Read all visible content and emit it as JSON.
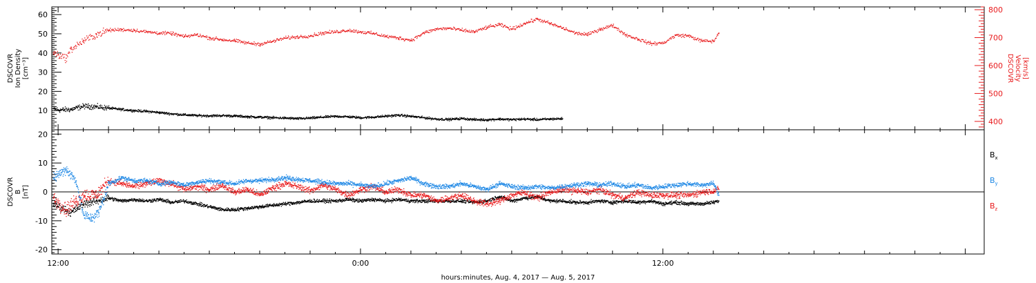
{
  "chart_data": [
    {
      "type": "scatter",
      "panel": "plasma",
      "left_axis": {
        "label_lines": [
          "DSCOVR",
          "Ion Density",
          "[cm⁻³]"
        ],
        "range": [
          0,
          64
        ],
        "ticks": [
          10,
          20,
          30,
          40,
          50,
          60
        ],
        "color": "#000000"
      },
      "right_axis": {
        "label_lines": [
          "DSCOVR",
          "Velocity",
          "[km/s]"
        ],
        "range": [
          370,
          810
        ],
        "ticks": [
          400,
          500,
          600,
          700,
          800
        ],
        "color": "#e8191b"
      },
      "series": [
        {
          "axis": "left",
          "color": "#000000",
          "points": [
            [
              -0.2,
              11.2
            ],
            [
              0,
              10.5
            ],
            [
              0.5,
              10.8
            ],
            [
              1,
              12.5
            ],
            [
              1.5,
              12.2
            ],
            [
              2,
              11.5
            ],
            [
              2.5,
              10.8
            ],
            [
              3,
              10.2
            ],
            [
              3.5,
              9.8
            ],
            [
              4,
              9.2
            ],
            [
              4.5,
              8.5
            ],
            [
              5,
              8
            ],
            [
              5.5,
              7.6
            ],
            [
              6,
              7.5
            ],
            [
              6.5,
              7.6
            ],
            [
              7,
              7.4
            ],
            [
              7.5,
              7
            ],
            [
              8,
              6.8
            ],
            [
              8.5,
              6.5
            ],
            [
              9,
              6.3
            ],
            [
              9.5,
              6
            ],
            [
              10,
              6.3
            ],
            [
              10.5,
              6.8
            ],
            [
              11,
              7.2
            ],
            [
              11.5,
              7
            ],
            [
              12,
              6.5
            ],
            [
              12.5,
              6.8
            ],
            [
              13,
              7.3
            ],
            [
              13.5,
              7.8
            ],
            [
              14,
              7.2
            ],
            [
              14.5,
              6.5
            ],
            [
              15,
              5.8
            ],
            [
              15.5,
              5.6
            ],
            [
              16,
              6.1
            ],
            [
              16.5,
              5.5
            ],
            [
              17,
              5.4
            ],
            [
              17.5,
              5.8
            ],
            [
              18,
              5.5
            ],
            [
              18.5,
              5.8
            ],
            [
              19,
              5.5
            ],
            [
              19.5,
              5.8
            ],
            [
              20,
              6
            ]
          ]
        },
        {
          "axis": "right",
          "color": "#e8191b",
          "points": [
            [
              -0.2,
              648
            ],
            [
              0,
              640
            ],
            [
              0.3,
              628
            ],
            [
              0.5,
              660
            ],
            [
              1,
              690
            ],
            [
              1.5,
              712
            ],
            [
              2,
              728
            ],
            [
              2.5,
              730
            ],
            [
              3,
              728
            ],
            [
              3.5,
              722
            ],
            [
              4,
              718
            ],
            [
              4.5,
              716
            ],
            [
              5,
              705
            ],
            [
              5.5,
              712
            ],
            [
              6,
              700
            ],
            [
              6.5,
              694
            ],
            [
              7,
              690
            ],
            [
              7.5,
              682
            ],
            [
              8,
              678
            ],
            [
              8.5,
              688
            ],
            [
              9,
              700
            ],
            [
              9.5,
              704
            ],
            [
              10,
              708
            ],
            [
              10.5,
              718
            ],
            [
              11,
              722
            ],
            [
              11.5,
              728
            ],
            [
              12,
              722
            ],
            [
              12.5,
              716
            ],
            [
              13,
              706
            ],
            [
              13.5,
              700
            ],
            [
              14,
              692
            ],
            [
              14.5,
              718
            ],
            [
              15,
              732
            ],
            [
              15.5,
              735
            ],
            [
              16,
              728
            ],
            [
              16.5,
              722
            ],
            [
              17,
              738
            ],
            [
              17.5,
              748
            ],
            [
              18,
              732
            ],
            [
              18.5,
              752
            ],
            [
              19,
              768
            ],
            [
              19.5,
              752
            ],
            [
              20,
              736
            ],
            [
              20.5,
              718
            ],
            [
              21,
              712
            ],
            [
              21.5,
              732
            ],
            [
              22,
              745
            ],
            [
              22.5,
              712
            ],
            [
              23,
              696
            ],
            [
              23.5,
              680
            ],
            [
              24,
              682
            ],
            [
              24.5,
              710
            ],
            [
              25,
              708
            ],
            [
              25.5,
              690
            ],
            [
              26,
              688
            ],
            [
              26.2,
              718
            ]
          ]
        }
      ]
    },
    {
      "type": "scatter",
      "panel": "magnetic field",
      "left_axis": {
        "label_lines": [
          "DSCOVR",
          "B",
          "[nT]"
        ],
        "range": [
          -21.5,
          21.5
        ],
        "ticks": [
          -20,
          -10,
          0,
          10,
          20
        ]
      },
      "zero_line": 0,
      "legend": {
        "placement": "right",
        "entries": [
          {
            "label": "B",
            "sub": "x",
            "color": "#000000"
          },
          {
            "label": "B",
            "sub": "y",
            "color": "#1e88e5"
          },
          {
            "label": "B",
            "sub": "z",
            "color": "#e8191b"
          }
        ]
      },
      "series": [
        {
          "name": "Bx",
          "color": "#000000",
          "points": [
            [
              -0.2,
              -4
            ],
            [
              0.5,
              -7
            ],
            [
              1,
              -4
            ],
            [
              1.5,
              -3
            ],
            [
              2,
              -2
            ],
            [
              2.5,
              -3
            ],
            [
              3,
              -2.5
            ],
            [
              3.5,
              -3
            ],
            [
              4,
              -2.5
            ],
            [
              4.5,
              -3.5
            ],
            [
              5,
              -3
            ],
            [
              5.5,
              -4
            ],
            [
              6,
              -5
            ],
            [
              6.5,
              -6
            ],
            [
              7,
              -6
            ],
            [
              7.5,
              -5.5
            ],
            [
              8,
              -5
            ],
            [
              8.5,
              -4.5
            ],
            [
              9,
              -4
            ],
            [
              9.5,
              -3.5
            ],
            [
              10,
              -3
            ],
            [
              10.5,
              -3
            ],
            [
              11,
              -3
            ],
            [
              11.5,
              -2.5
            ],
            [
              12,
              -3
            ],
            [
              12.5,
              -2.5
            ],
            [
              13,
              -3
            ],
            [
              13.5,
              -2.5
            ],
            [
              14,
              -3
            ],
            [
              14.5,
              -3
            ],
            [
              15,
              -3
            ],
            [
              15.5,
              -3
            ],
            [
              16,
              -3
            ],
            [
              16.5,
              -3.5
            ],
            [
              17,
              -3
            ],
            [
              17.5,
              -1.5
            ],
            [
              18,
              -3
            ],
            [
              18.5,
              -2
            ],
            [
              19,
              -1.5
            ],
            [
              19.5,
              -3
            ],
            [
              20,
              -3
            ],
            [
              20.5,
              -3.5
            ],
            [
              21,
              -3.5
            ],
            [
              21.5,
              -3
            ],
            [
              22,
              -3.5
            ],
            [
              22.5,
              -3
            ],
            [
              23,
              -3.5
            ],
            [
              23.5,
              -3
            ],
            [
              24,
              -4
            ],
            [
              24.5,
              -3.5
            ],
            [
              25,
              -4
            ],
            [
              25.5,
              -4
            ],
            [
              26,
              -3.5
            ],
            [
              26.2,
              -3
            ]
          ]
        },
        {
          "name": "By",
          "color": "#1e88e5",
          "points": [
            [
              -0.2,
              5
            ],
            [
              0.3,
              8
            ],
            [
              0.7,
              4
            ],
            [
              1,
              -8
            ],
            [
              1.3,
              -9
            ],
            [
              1.6,
              -7
            ],
            [
              2,
              3
            ],
            [
              2.5,
              5
            ],
            [
              3,
              4
            ],
            [
              3.5,
              4
            ],
            [
              4,
              3
            ],
            [
              4.5,
              3.5
            ],
            [
              5,
              2.5
            ],
            [
              5.5,
              3.5
            ],
            [
              6,
              4
            ],
            [
              6.5,
              3.5
            ],
            [
              7,
              3
            ],
            [
              7.5,
              4
            ],
            [
              8,
              4
            ],
            [
              8.5,
              4.5
            ],
            [
              9,
              5
            ],
            [
              9.5,
              4.5
            ],
            [
              10,
              4
            ],
            [
              10.5,
              3.5
            ],
            [
              11,
              3
            ],
            [
              11.5,
              3
            ],
            [
              12,
              2.5
            ],
            [
              12.5,
              2
            ],
            [
              13,
              3
            ],
            [
              13.5,
              4
            ],
            [
              14,
              5
            ],
            [
              14.5,
              3
            ],
            [
              15,
              2
            ],
            [
              15.5,
              2
            ],
            [
              16,
              3
            ],
            [
              16.5,
              2
            ],
            [
              17,
              1
            ],
            [
              17.5,
              3
            ],
            [
              18,
              2
            ],
            [
              18.5,
              1.5
            ],
            [
              19,
              2
            ],
            [
              19.5,
              1.5
            ],
            [
              20,
              2
            ],
            [
              20.5,
              2.5
            ],
            [
              21,
              3
            ],
            [
              21.5,
              2.5
            ],
            [
              22,
              3
            ],
            [
              22.5,
              2
            ],
            [
              23,
              2.5
            ],
            [
              23.5,
              1.5
            ],
            [
              24,
              2
            ],
            [
              24.5,
              2.5
            ],
            [
              25,
              3
            ],
            [
              25.5,
              2.5
            ],
            [
              26,
              3
            ],
            [
              26.2,
              -1
            ]
          ]
        },
        {
          "name": "Bz",
          "color": "#e8191b",
          "points": [
            [
              -0.2,
              -2
            ],
            [
              0.3,
              -6
            ],
            [
              0.7,
              -3
            ],
            [
              1,
              -1
            ],
            [
              1.5,
              -1
            ],
            [
              2,
              4
            ],
            [
              2.5,
              3
            ],
            [
              3,
              2
            ],
            [
              3.5,
              3
            ],
            [
              4,
              4
            ],
            [
              4.5,
              3
            ],
            [
              5,
              1
            ],
            [
              5.5,
              2
            ],
            [
              6,
              1
            ],
            [
              6.5,
              2.5
            ],
            [
              7,
              0
            ],
            [
              7.5,
              1
            ],
            [
              8,
              -1
            ],
            [
              8.5,
              1.5
            ],
            [
              9,
              3
            ],
            [
              9.5,
              2
            ],
            [
              10,
              0.5
            ],
            [
              10.5,
              2.5
            ],
            [
              11,
              1
            ],
            [
              11.5,
              -1
            ],
            [
              12,
              1
            ],
            [
              12.5,
              2
            ],
            [
              13,
              0
            ],
            [
              13.5,
              1
            ],
            [
              14,
              -1
            ],
            [
              14.5,
              -1
            ],
            [
              15,
              -3
            ],
            [
              15.5,
              -2
            ],
            [
              16,
              -1
            ],
            [
              16.5,
              -3
            ],
            [
              17,
              -4
            ],
            [
              17.5,
              -3
            ],
            [
              18,
              -1
            ],
            [
              18.5,
              0
            ],
            [
              19,
              -2
            ],
            [
              19.5,
              0
            ],
            [
              20,
              1
            ],
            [
              20.5,
              0.5
            ],
            [
              21,
              0
            ],
            [
              21.5,
              1
            ],
            [
              22,
              -1
            ],
            [
              22.5,
              -2
            ],
            [
              23,
              0
            ],
            [
              23.5,
              -1
            ],
            [
              24,
              -1
            ],
            [
              24.5,
              -1
            ],
            [
              25,
              -1
            ],
            [
              25.5,
              0
            ],
            [
              26,
              0.5
            ],
            [
              26.2,
              1
            ]
          ]
        }
      ]
    }
  ],
  "x_axis": {
    "unit": "hours from 12:00 UT, Aug. 4, 2017",
    "range": [
      -0.25,
      36.75
    ],
    "tick_labels": [
      {
        "value": 0,
        "label": "12:00"
      },
      {
        "value": 12,
        "label": "0:00"
      },
      {
        "value": 24,
        "label": "12:00"
      }
    ],
    "caption": "hours:minutes, Aug.  4, 2017 — Aug.  5, 2017"
  }
}
